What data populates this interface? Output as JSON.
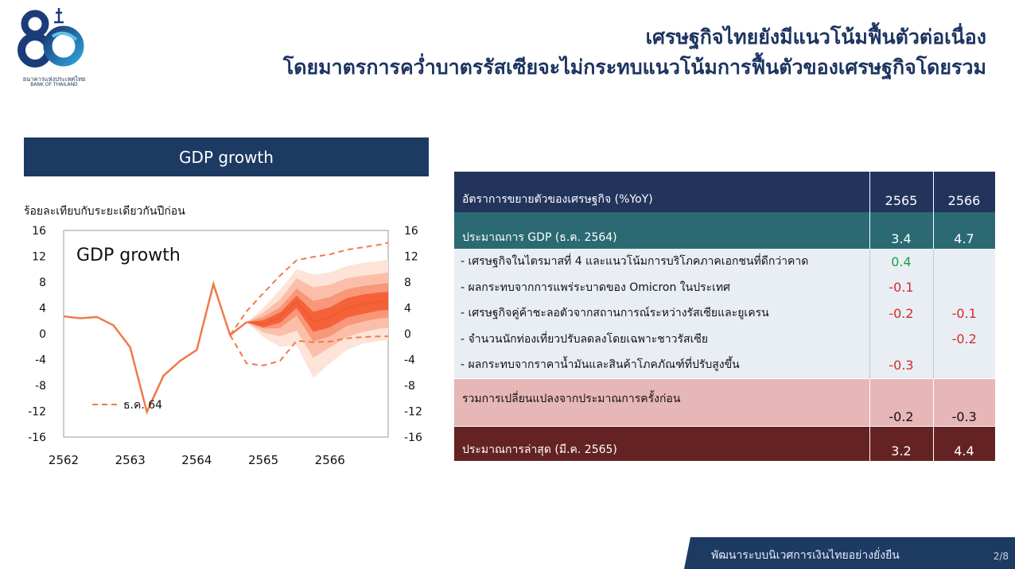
{
  "logo": {
    "text_th": "ธนาคารแห่งประเทศไทย",
    "text_en": "BANK OF THAILAND",
    "numeral": "80"
  },
  "title": {
    "line1": "เศรษฐกิจไทยยังมีแนวโน้มฟื้นตัวต่อเนื่อง",
    "line2": "โดยมาตรการคว่ำบาตรรัสเซียจะไม่กระทบแนวโน้มการฟื้นตัวของเศรษฐกิจโดยรวม"
  },
  "chart_header": "GDP growth",
  "chart_data": {
    "type": "line",
    "title": "GDP growth",
    "ylabel": "ร้อยละเทียบกับระยะเดียวกันปีก่อน",
    "ylim": [
      -16,
      16
    ],
    "yticks": [
      16,
      12,
      8,
      4,
      0,
      -4,
      -8,
      -12,
      -16
    ],
    "xlim": [
      2562,
      2566.875
    ],
    "xticks": [
      "2562",
      "2563",
      "2564",
      "2565",
      "2566"
    ],
    "grid": false,
    "series": [
      {
        "type": "solid-line",
        "color": "#f07a4a",
        "x": [
          2562.0,
          2562.25,
          2562.5,
          2562.75,
          2563.0,
          2563.25,
          2563.5,
          2563.75,
          2564.0,
          2564.25,
          2564.5,
          2564.75
        ],
        "y": [
          2.7,
          2.4,
          2.6,
          1.3,
          -2.1,
          -12.1,
          -6.5,
          -4.2,
          -2.5,
          7.7,
          -0.2,
          1.8
        ]
      },
      {
        "name": "ธ.ค. 64",
        "type": "dashed-line",
        "color": "#f07a4a",
        "upper": {
          "x": [
            2564.5,
            2564.75,
            2565.0,
            2565.25,
            2565.5,
            2565.75,
            2566.0,
            2566.25,
            2566.5,
            2566.75,
            2566.875
          ],
          "y": [
            -0.2,
            3.5,
            6.3,
            9.0,
            11.4,
            11.9,
            12.3,
            13.0,
            13.4,
            13.8,
            14.1
          ]
        },
        "lower": {
          "x": [
            2564.5,
            2564.75,
            2565.0,
            2565.25,
            2565.5,
            2565.75,
            2566.0,
            2566.25,
            2566.5,
            2566.75,
            2566.875
          ],
          "y": [
            -0.2,
            -4.6,
            -4.9,
            -4.2,
            -1.1,
            -1.3,
            -1.2,
            -0.7,
            -0.5,
            -0.4,
            -0.4
          ]
        }
      },
      {
        "type": "fan",
        "x": [
          2564.75,
          2565.0,
          2565.25,
          2565.5,
          2565.75,
          2566.0,
          2566.25,
          2566.5,
          2566.75,
          2566.875
        ],
        "center": [
          1.8,
          1.5,
          2.5,
          5.0,
          1.8,
          2.5,
          4.0,
          4.6,
          5.0,
          5.1
        ],
        "bands": [
          {
            "color": "#fde3d8",
            "upper": [
              1.8,
              4.0,
              6.8,
              10.0,
              9.2,
              9.5,
              10.5,
              11.0,
              11.3,
              11.5
            ],
            "lower": [
              1.8,
              -0.5,
              -2.0,
              -1.8,
              -6.8,
              -4.6,
              -2.5,
              -1.5,
              -1.1,
              -1.0
            ]
          },
          {
            "color": "#fbbfa9",
            "upper": [
              1.8,
              3.3,
              5.3,
              8.6,
              7.2,
              7.6,
              8.6,
              9.0,
              9.3,
              9.5
            ],
            "lower": [
              1.8,
              0.2,
              -0.4,
              0.5,
              -3.7,
              -2.1,
              -0.5,
              0.3,
              0.8,
              0.9
            ]
          },
          {
            "color": "#f8977a",
            "upper": [
              1.8,
              2.6,
              4.1,
              7.0,
              5.1,
              5.7,
              6.9,
              7.4,
              7.7,
              7.9
            ],
            "lower": [
              1.8,
              0.8,
              0.9,
              2.8,
              -1.2,
              -0.4,
              1.2,
              1.9,
              2.4,
              2.5
            ]
          },
          {
            "color": "#f4623a",
            "upper": [
              1.8,
              2.1,
              3.3,
              5.9,
              3.4,
              4.1,
              5.5,
              6.1,
              6.4,
              6.5
            ],
            "lower": [
              1.8,
              1.0,
              1.7,
              4.0,
              0.3,
              1.0,
              2.5,
              3.1,
              3.6,
              3.7
            ]
          }
        ]
      }
    ]
  },
  "table": {
    "header": {
      "label": "อัตราการขยายตัวของเศรษฐกิจ (%YoY)",
      "col1": "2565",
      "col2": "2566"
    },
    "gdp_row": {
      "label": "ประมาณการ GDP (ธ.ค. 2564)",
      "v1": "3.4",
      "v2": "4.7"
    },
    "items": [
      {
        "label": "- เศรษฐกิจในไตรมาสที่ 4 และแนวโน้มการบริโภคภาคเอกชนที่ดีกว่าคาด",
        "v1": "0.4",
        "v2": ""
      },
      {
        "label": "- ผลกระทบจากการแพร่ระบาดของ Omicron ในประเทศ",
        "v1": "-0.1",
        "v2": ""
      },
      {
        "label": "- เศรษฐกิจคู่ค้าชะลอตัวจากสถานการณ์ระหว่างรัสเซียและยูเครน",
        "v1": "-0.2",
        "v2": "-0.1"
      },
      {
        "label": "- จำนวนนักท่องเที่ยวปรับลดลงโดยเฉพาะชาวรัสเซีย",
        "v1": "",
        "v2": "-0.2"
      },
      {
        "label": "- ผลกระทบจากราคาน้ำมันและสินค้าโภคภัณฑ์ที่ปรับสูงขึ้น",
        "v1": "-0.3",
        "v2": ""
      }
    ],
    "total_row": {
      "label": "รวมการเปลี่ยนแปลงจากประมาณการครั้งก่อน",
      "v1": "-0.2",
      "v2": "-0.3"
    },
    "latest_row": {
      "label": "ประมาณการล่าสุด (มี.ค. 2565)",
      "v1": "3.2",
      "v2": "4.4"
    },
    "colors": {
      "positive": "#18a045",
      "negative": "#d42a2a"
    }
  },
  "footer": {
    "text": "พัฒนาระบบนิเวศการเงินไทยอย่างยั่งยืน",
    "page": "2/8"
  }
}
